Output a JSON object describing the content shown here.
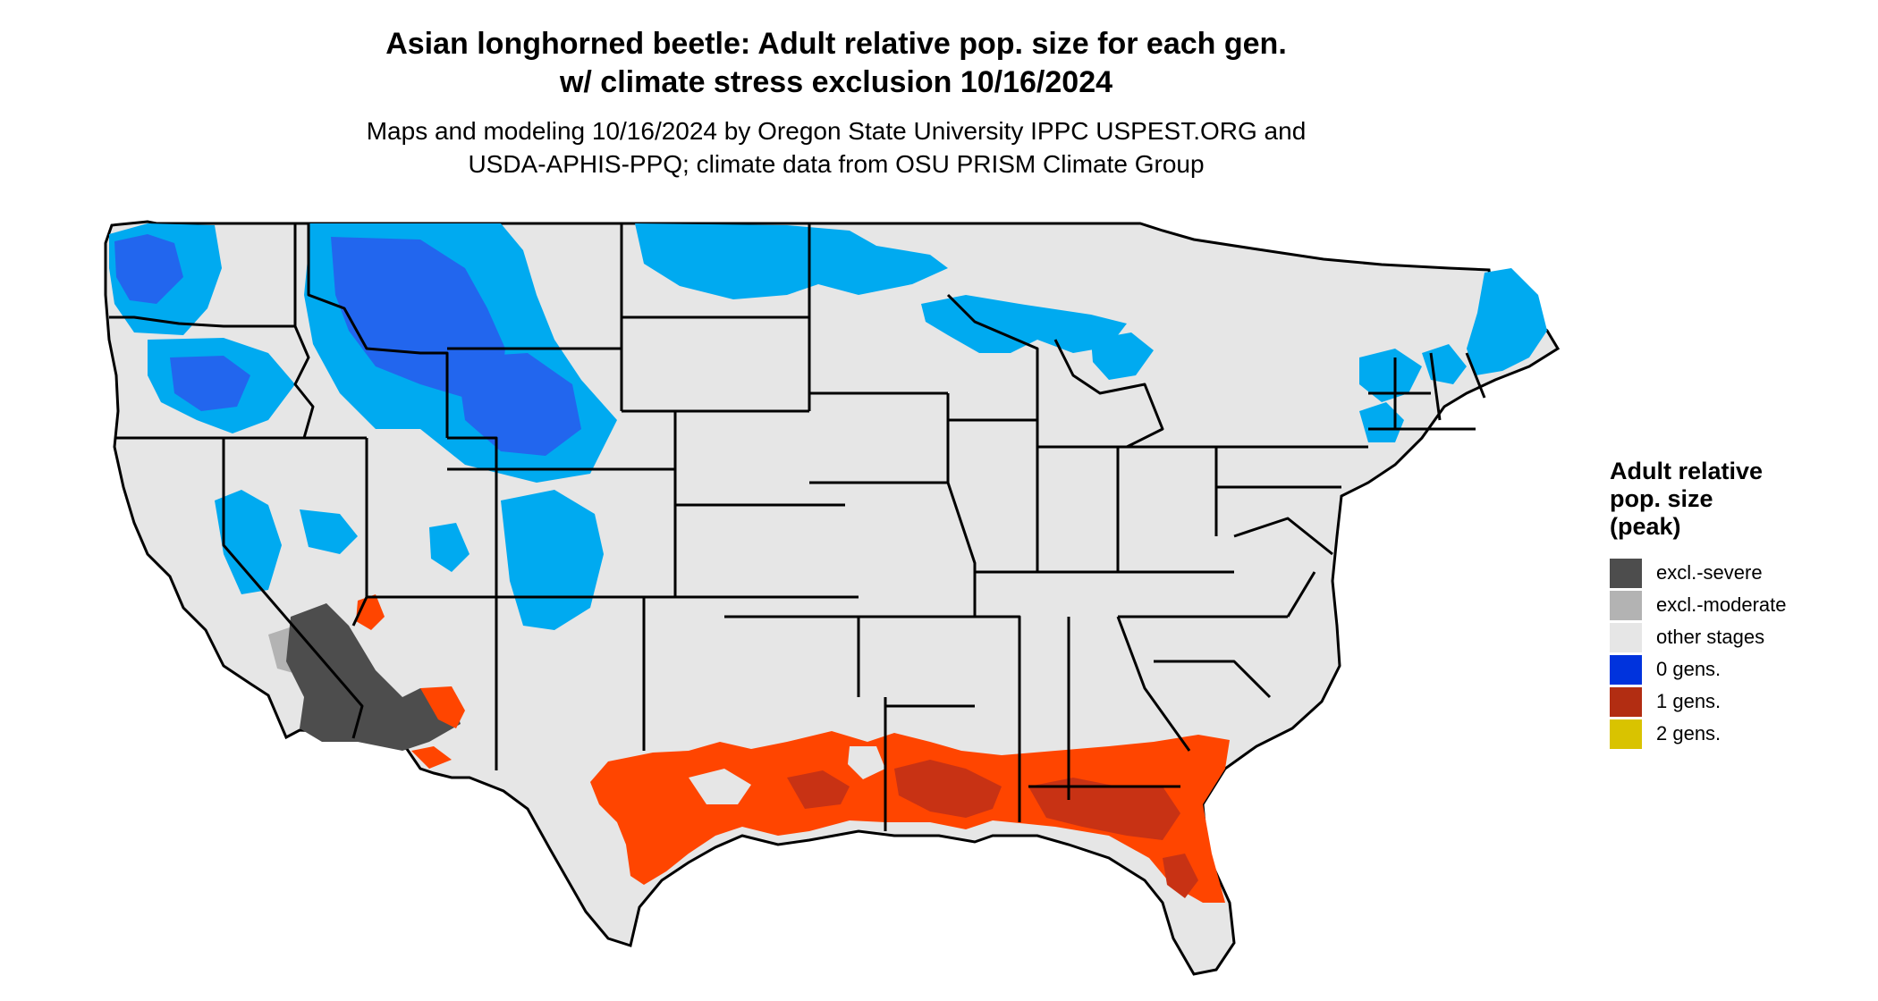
{
  "title": {
    "line1": "Asian longhorned beetle: Adult relative pop. size for each gen.",
    "line2": "w/ climate stress exclusion 10/16/2024"
  },
  "subtitle": {
    "line1": "Maps and modeling 10/16/2024 by Oregon State University IPPC USPEST.ORG and",
    "line2": "USDA-APHIS-PPQ; climate data from OSU PRISM Climate Group"
  },
  "legend": {
    "title_line1": "Adult relative",
    "title_line2": "pop. size",
    "title_line3": "(peak)",
    "items": [
      {
        "label": "excl.-severe",
        "color": "#4d4d4d"
      },
      {
        "label": "excl.-moderate",
        "color": "#b3b3b3"
      },
      {
        "label": "other stages",
        "color": "#e6e6e6"
      },
      {
        "label": "0 gens.",
        "color": "#0033dd"
      },
      {
        "label": "1 gens.",
        "color": "#b22d12"
      },
      {
        "label": "2 gens.",
        "color": "#d9c300"
      }
    ]
  },
  "colors": {
    "land": "#e6e6e6",
    "light_blue": "#00aaf0",
    "mid_blue": "#2266ee",
    "orange": "#ff4500",
    "dark_red": "#c83214",
    "excl_severe": "#4d4d4d",
    "excl_moderate": "#b3b3b3",
    "state_border": "#000000"
  }
}
